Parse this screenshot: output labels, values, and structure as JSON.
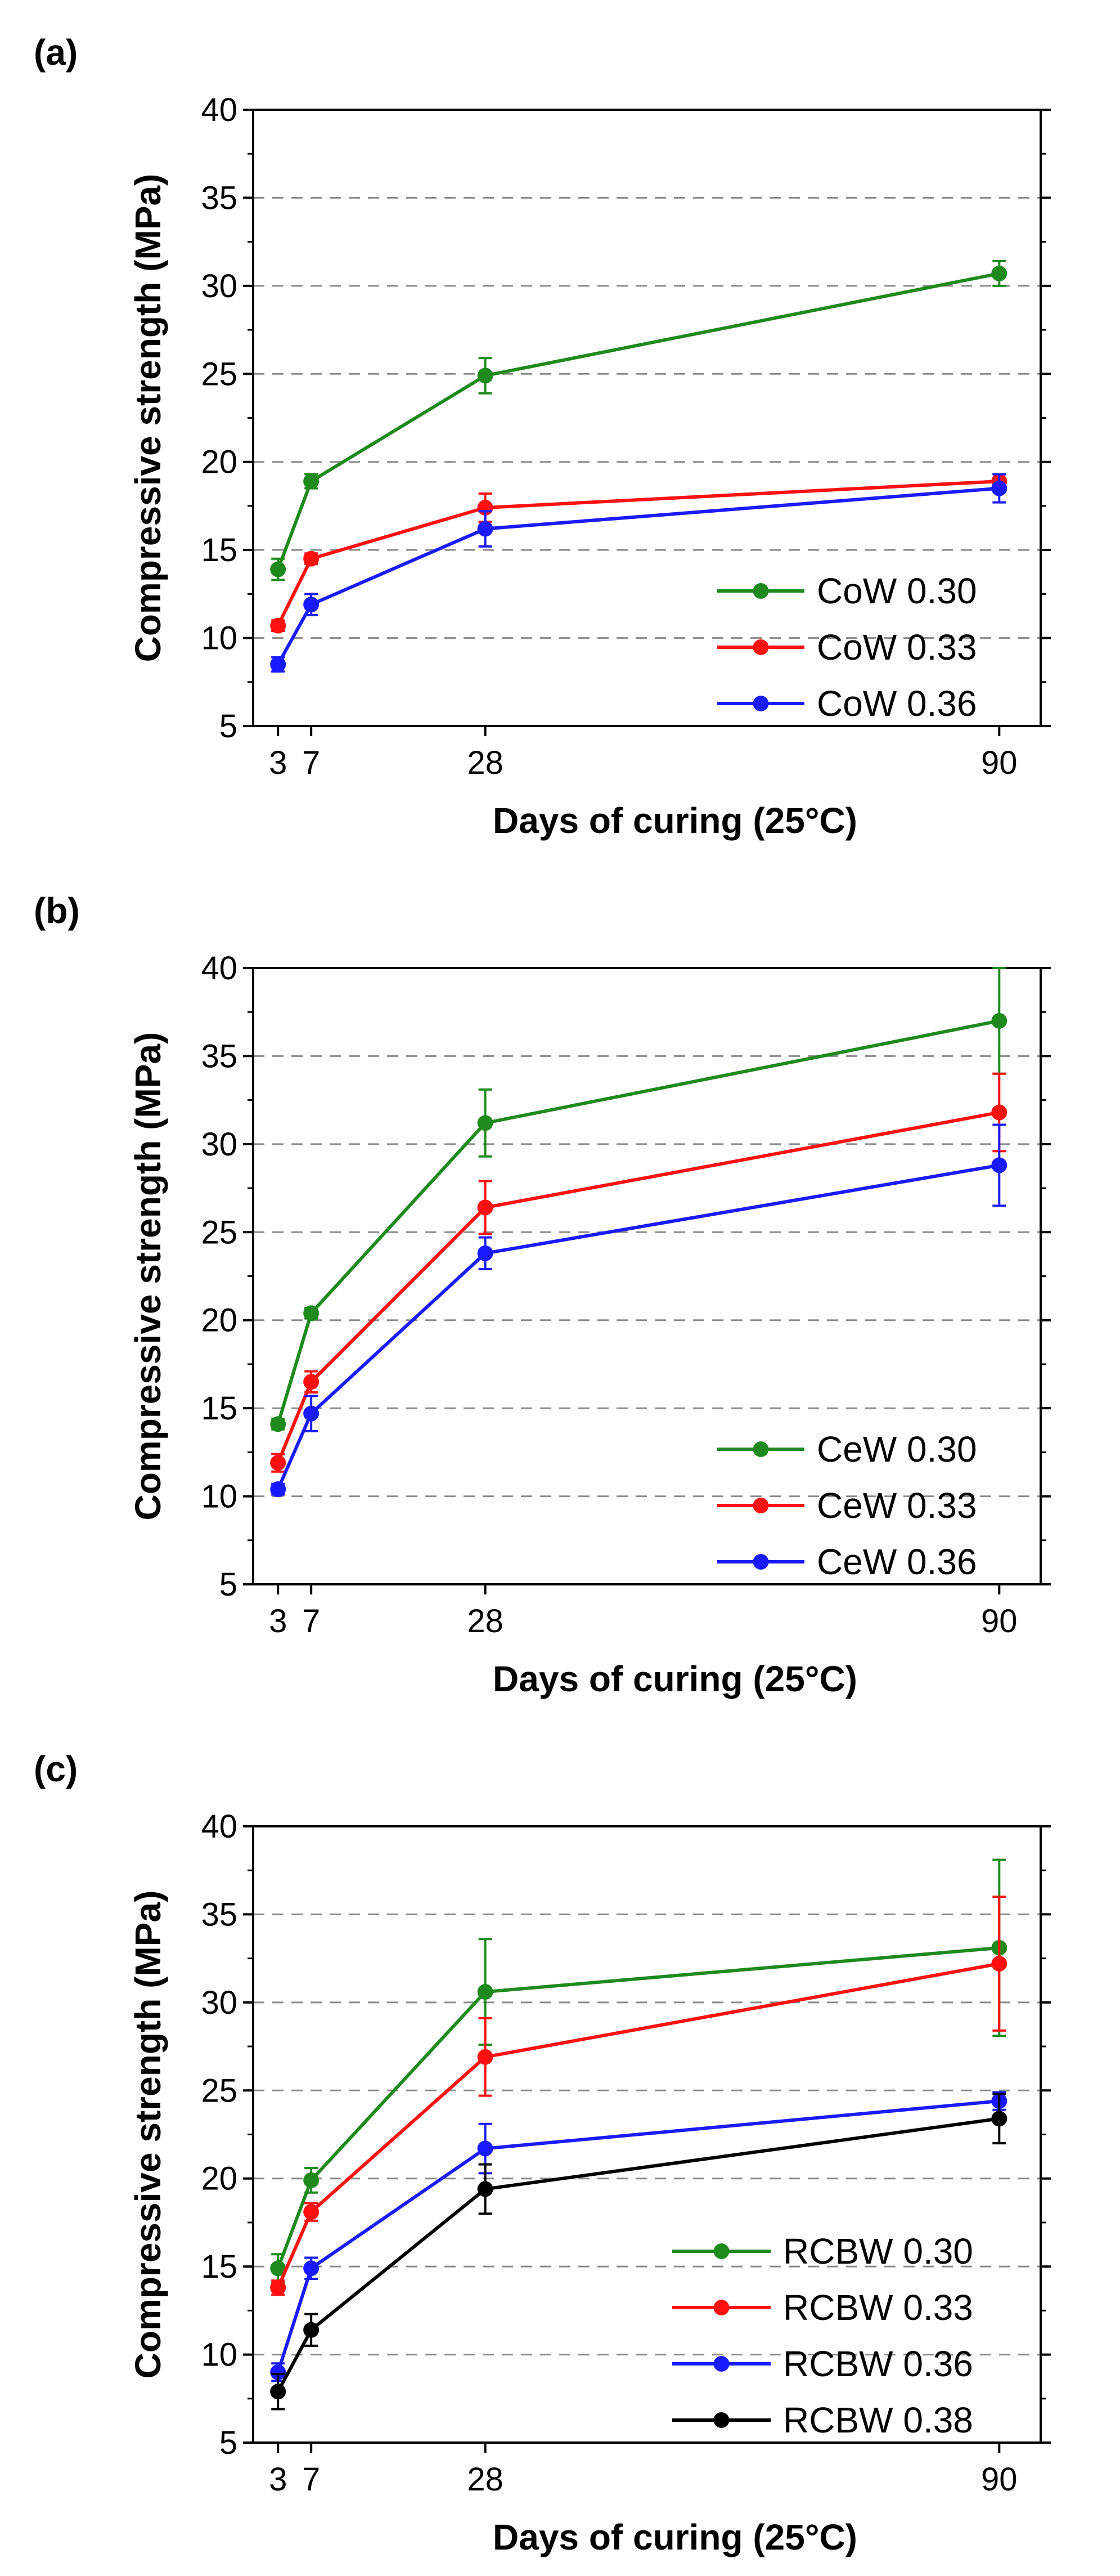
{
  "chart_data": [
    {
      "panel": "(a)",
      "type": "line",
      "xlabel": "Days of curing (25°C)",
      "ylabel": "Compressive strength (MPa)",
      "xlim": [
        0,
        95
      ],
      "ylim": [
        5,
        40
      ],
      "xticks": [
        3,
        7,
        28,
        90
      ],
      "yticks": [
        5,
        10,
        15,
        20,
        25,
        30,
        35,
        40
      ],
      "gridlines": [
        10,
        15,
        20,
        25,
        30,
        35
      ],
      "legend_position": "bottom-right",
      "x": [
        3,
        7,
        28,
        90
      ],
      "series": [
        {
          "name": "CoW 0.30",
          "color": "#1e8a1e",
          "values": [
            13.9,
            18.9,
            24.9,
            30.7
          ],
          "errors": [
            0.6,
            0.4,
            1.0,
            0.7
          ]
        },
        {
          "name": "CoW 0.33",
          "color": "#ff1010",
          "values": [
            10.7,
            14.5,
            17.4,
            18.9
          ],
          "errors": [
            0.3,
            0.3,
            0.8,
            0.4
          ]
        },
        {
          "name": "CoW 0.36",
          "color": "#1a1aff",
          "values": [
            8.5,
            11.9,
            16.2,
            18.5
          ],
          "errors": [
            0.4,
            0.6,
            1.0,
            0.8
          ]
        }
      ]
    },
    {
      "panel": "(b)",
      "type": "line",
      "xlabel": "Days of curing (25°C)",
      "ylabel": "Compressive strength (MPa)",
      "xlim": [
        0,
        95
      ],
      "ylim": [
        5,
        40
      ],
      "xticks": [
        3,
        7,
        28,
        90
      ],
      "yticks": [
        5,
        10,
        15,
        20,
        25,
        30,
        35,
        40
      ],
      "gridlines": [
        10,
        15,
        20,
        25,
        30,
        35
      ],
      "legend_position": "bottom-right",
      "x": [
        3,
        7,
        28,
        90
      ],
      "series": [
        {
          "name": "CeW 0.30",
          "color": "#1e8a1e",
          "values": [
            14.1,
            20.4,
            31.2,
            37.0
          ],
          "errors": [
            0.3,
            0.3,
            1.9,
            3.0
          ]
        },
        {
          "name": "CeW 0.33",
          "color": "#ff1010",
          "values": [
            11.9,
            16.5,
            26.4,
            31.8
          ],
          "errors": [
            0.5,
            0.6,
            1.5,
            2.2
          ]
        },
        {
          "name": "CeW 0.36",
          "color": "#1a1aff",
          "values": [
            10.4,
            14.7,
            23.8,
            28.8
          ],
          "errors": [
            0.3,
            1.0,
            0.9,
            2.3
          ]
        }
      ]
    },
    {
      "panel": "(c)",
      "type": "line",
      "xlabel": "Days of curing (25°C)",
      "ylabel": "Compressive strength (MPa)",
      "xlim": [
        0,
        95
      ],
      "ylim": [
        5,
        40
      ],
      "xticks": [
        3,
        7,
        28,
        90
      ],
      "yticks": [
        5,
        10,
        15,
        20,
        25,
        30,
        35,
        40
      ],
      "gridlines": [
        10,
        15,
        20,
        25,
        30,
        35
      ],
      "legend_position": "bottom-right",
      "x": [
        3,
        7,
        28,
        90
      ],
      "series": [
        {
          "name": "RCBW 0.30",
          "color": "#1e8a1e",
          "values": [
            14.9,
            19.9,
            30.6,
            33.1
          ],
          "errors": [
            0.8,
            0.7,
            3.0,
            5.0
          ]
        },
        {
          "name": "RCBW 0.33",
          "color": "#ff1010",
          "values": [
            13.8,
            18.1,
            26.9,
            32.2
          ],
          "errors": [
            0.4,
            0.5,
            2.2,
            3.8
          ]
        },
        {
          "name": "RCBW 0.36",
          "color": "#1a1aff",
          "values": [
            9.0,
            14.9,
            21.7,
            24.4
          ],
          "errors": [
            0.5,
            0.6,
            1.4,
            0.5
          ]
        },
        {
          "name": "RCBW 0.38",
          "color": "#000000",
          "values": [
            7.9,
            11.4,
            19.4,
            23.4
          ],
          "errors": [
            1.0,
            0.9,
            1.4,
            1.4
          ]
        }
      ]
    }
  ]
}
